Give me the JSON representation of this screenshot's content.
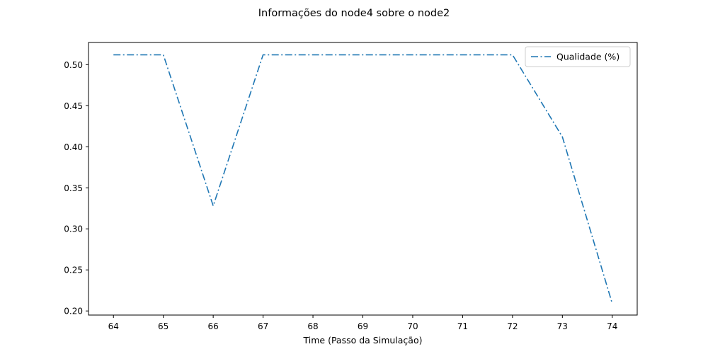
{
  "chart_data": {
    "type": "line",
    "title": "Informações do node4 sobre o node2",
    "xlabel": "Time (Passo da Simulação)",
    "ylabel": "",
    "xlim": [
      63.5,
      74.5
    ],
    "ylim": [
      0.195,
      0.527
    ],
    "xticks": [
      64,
      65,
      66,
      67,
      68,
      69,
      70,
      71,
      72,
      73,
      74
    ],
    "yticks": [
      0.2,
      0.25,
      0.3,
      0.35,
      0.4,
      0.45,
      0.5
    ],
    "grid": false,
    "legend": {
      "position": "top-right"
    },
    "series": [
      {
        "name": "Qualidade (%)",
        "color": "#1f77b4",
        "linestyle": "dashdot",
        "x": [
          64,
          65,
          66,
          67,
          68,
          69,
          70,
          71,
          72,
          73,
          74
        ],
        "y": [
          0.512,
          0.512,
          0.328,
          0.512,
          0.512,
          0.512,
          0.512,
          0.512,
          0.512,
          0.412,
          0.209
        ]
      }
    ]
  }
}
